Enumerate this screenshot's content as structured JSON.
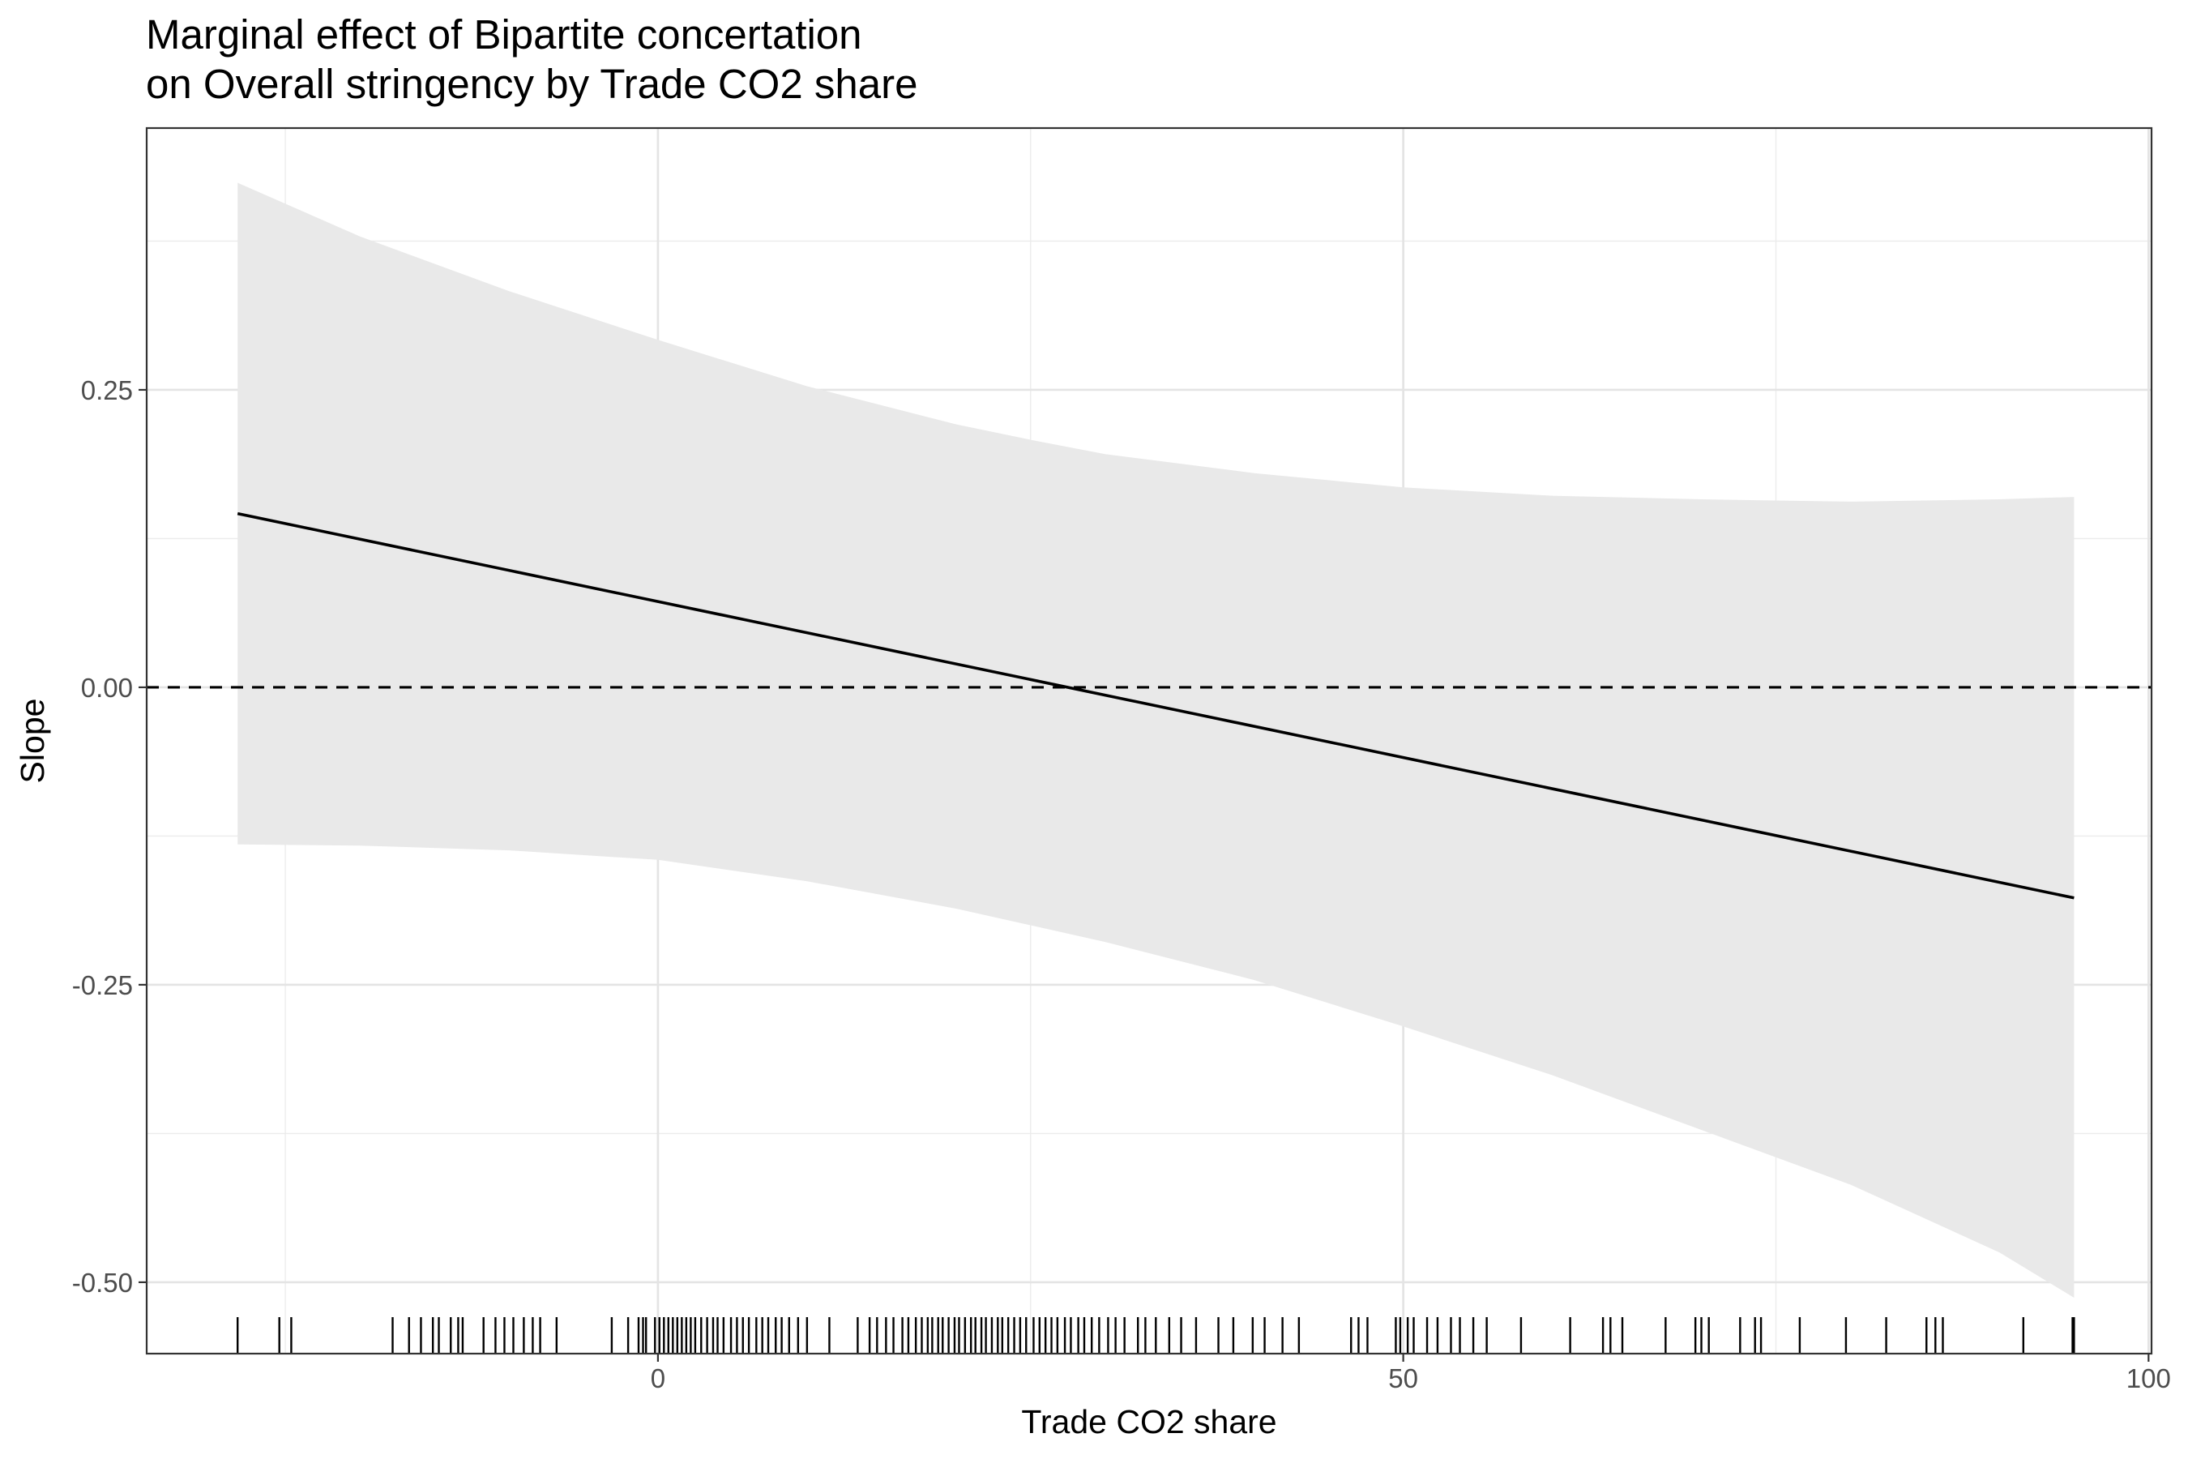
{
  "chart_data": {
    "type": "line",
    "title": "Marginal effect of Bipartite concertation",
    "subtitle": "on Overall stringency by Trade CO2 share",
    "xlabel": "Trade CO2 share",
    "ylabel": "Slope",
    "xlim": [
      -34.3,
      100.2
    ],
    "ylim": [
      -0.56,
      0.47
    ],
    "x_ticks": [
      0,
      50,
      100
    ],
    "x_tick_labels": [
      "0",
      "50",
      "100"
    ],
    "y_ticks": [
      -0.5,
      -0.25,
      0,
      0.25
    ],
    "y_tick_labels": [
      "-0.50",
      "-0.25",
      "0.00",
      "0.25"
    ],
    "grid": true,
    "reference_line": {
      "y": 0,
      "style": "dashed"
    },
    "series": [
      {
        "values": [
          {
            "x": -28.2,
            "y": 0.146
          },
          {
            "x": 95.0,
            "y": -0.177
          }
        ]
      }
    ],
    "ribbon": {
      "x": [
        -28.2,
        -20,
        -10,
        0,
        10,
        20,
        25,
        30,
        40,
        50,
        60,
        70,
        80,
        90,
        95
      ],
      "upper": [
        0.424,
        0.379,
        0.333,
        0.292,
        0.253,
        0.221,
        0.208,
        0.196,
        0.18,
        0.168,
        0.161,
        0.158,
        0.156,
        0.158,
        0.16
      ],
      "lower": [
        -0.132,
        -0.133,
        -0.137,
        -0.145,
        -0.163,
        -0.186,
        -0.2,
        -0.214,
        -0.246,
        -0.285,
        -0.326,
        -0.372,
        -0.418,
        -0.475,
        -0.513
      ]
    },
    "rug_x": [
      -28.2,
      -25.4,
      -24.6,
      -17.8,
      -16.7,
      -15.9,
      -15.1,
      -14.7,
      -13.9,
      -13.4,
      -13.1,
      -11.7,
      -10.9,
      -10.3,
      -9.7,
      -9.0,
      -8.4,
      -7.9,
      -6.8,
      -3.1,
      -2.0,
      -1.3,
      -1.0,
      -0.8,
      -0.2,
      0.1,
      0.4,
      0.7,
      1.0,
      1.3,
      1.6,
      1.9,
      2.2,
      2.5,
      2.9,
      3.3,
      3.7,
      4.0,
      4.4,
      4.9,
      5.3,
      5.7,
      6.1,
      6.6,
      7.0,
      7.4,
      7.9,
      8.3,
      8.8,
      9.4,
      10.0,
      11.5,
      13.4,
      14.2,
      14.7,
      15.3,
      15.8,
      16.4,
      16.8,
      17.3,
      17.7,
      18.1,
      18.4,
      18.8,
      19.1,
      19.5,
      19.9,
      20.2,
      20.6,
      21.0,
      21.3,
      21.7,
      22.0,
      22.4,
      22.8,
      23.1,
      23.5,
      23.9,
      24.3,
      24.7,
      25.2,
      25.6,
      26.0,
      26.4,
      26.8,
      27.3,
      27.7,
      28.2,
      28.6,
      29.1,
      29.6,
      30.2,
      30.7,
      31.3,
      32.2,
      32.7,
      33.4,
      34.3,
      35.1,
      36.1,
      37.6,
      38.6,
      39.9,
      40.7,
      41.9,
      43.0,
      46.5,
      47.0,
      47.6,
      49.5,
      49.8,
      50.3,
      50.7,
      51.6,
      52.3,
      53.2,
      53.8,
      54.7,
      55.6,
      57.9,
      61.2,
      63.4,
      63.9,
      64.7,
      67.6,
      69.6,
      70.0,
      70.5,
      72.6,
      73.6,
      74.0,
      76.6,
      79.7,
      82.4,
      85.1,
      85.7,
      86.2,
      91.6,
      94.9,
      95.0
    ]
  }
}
